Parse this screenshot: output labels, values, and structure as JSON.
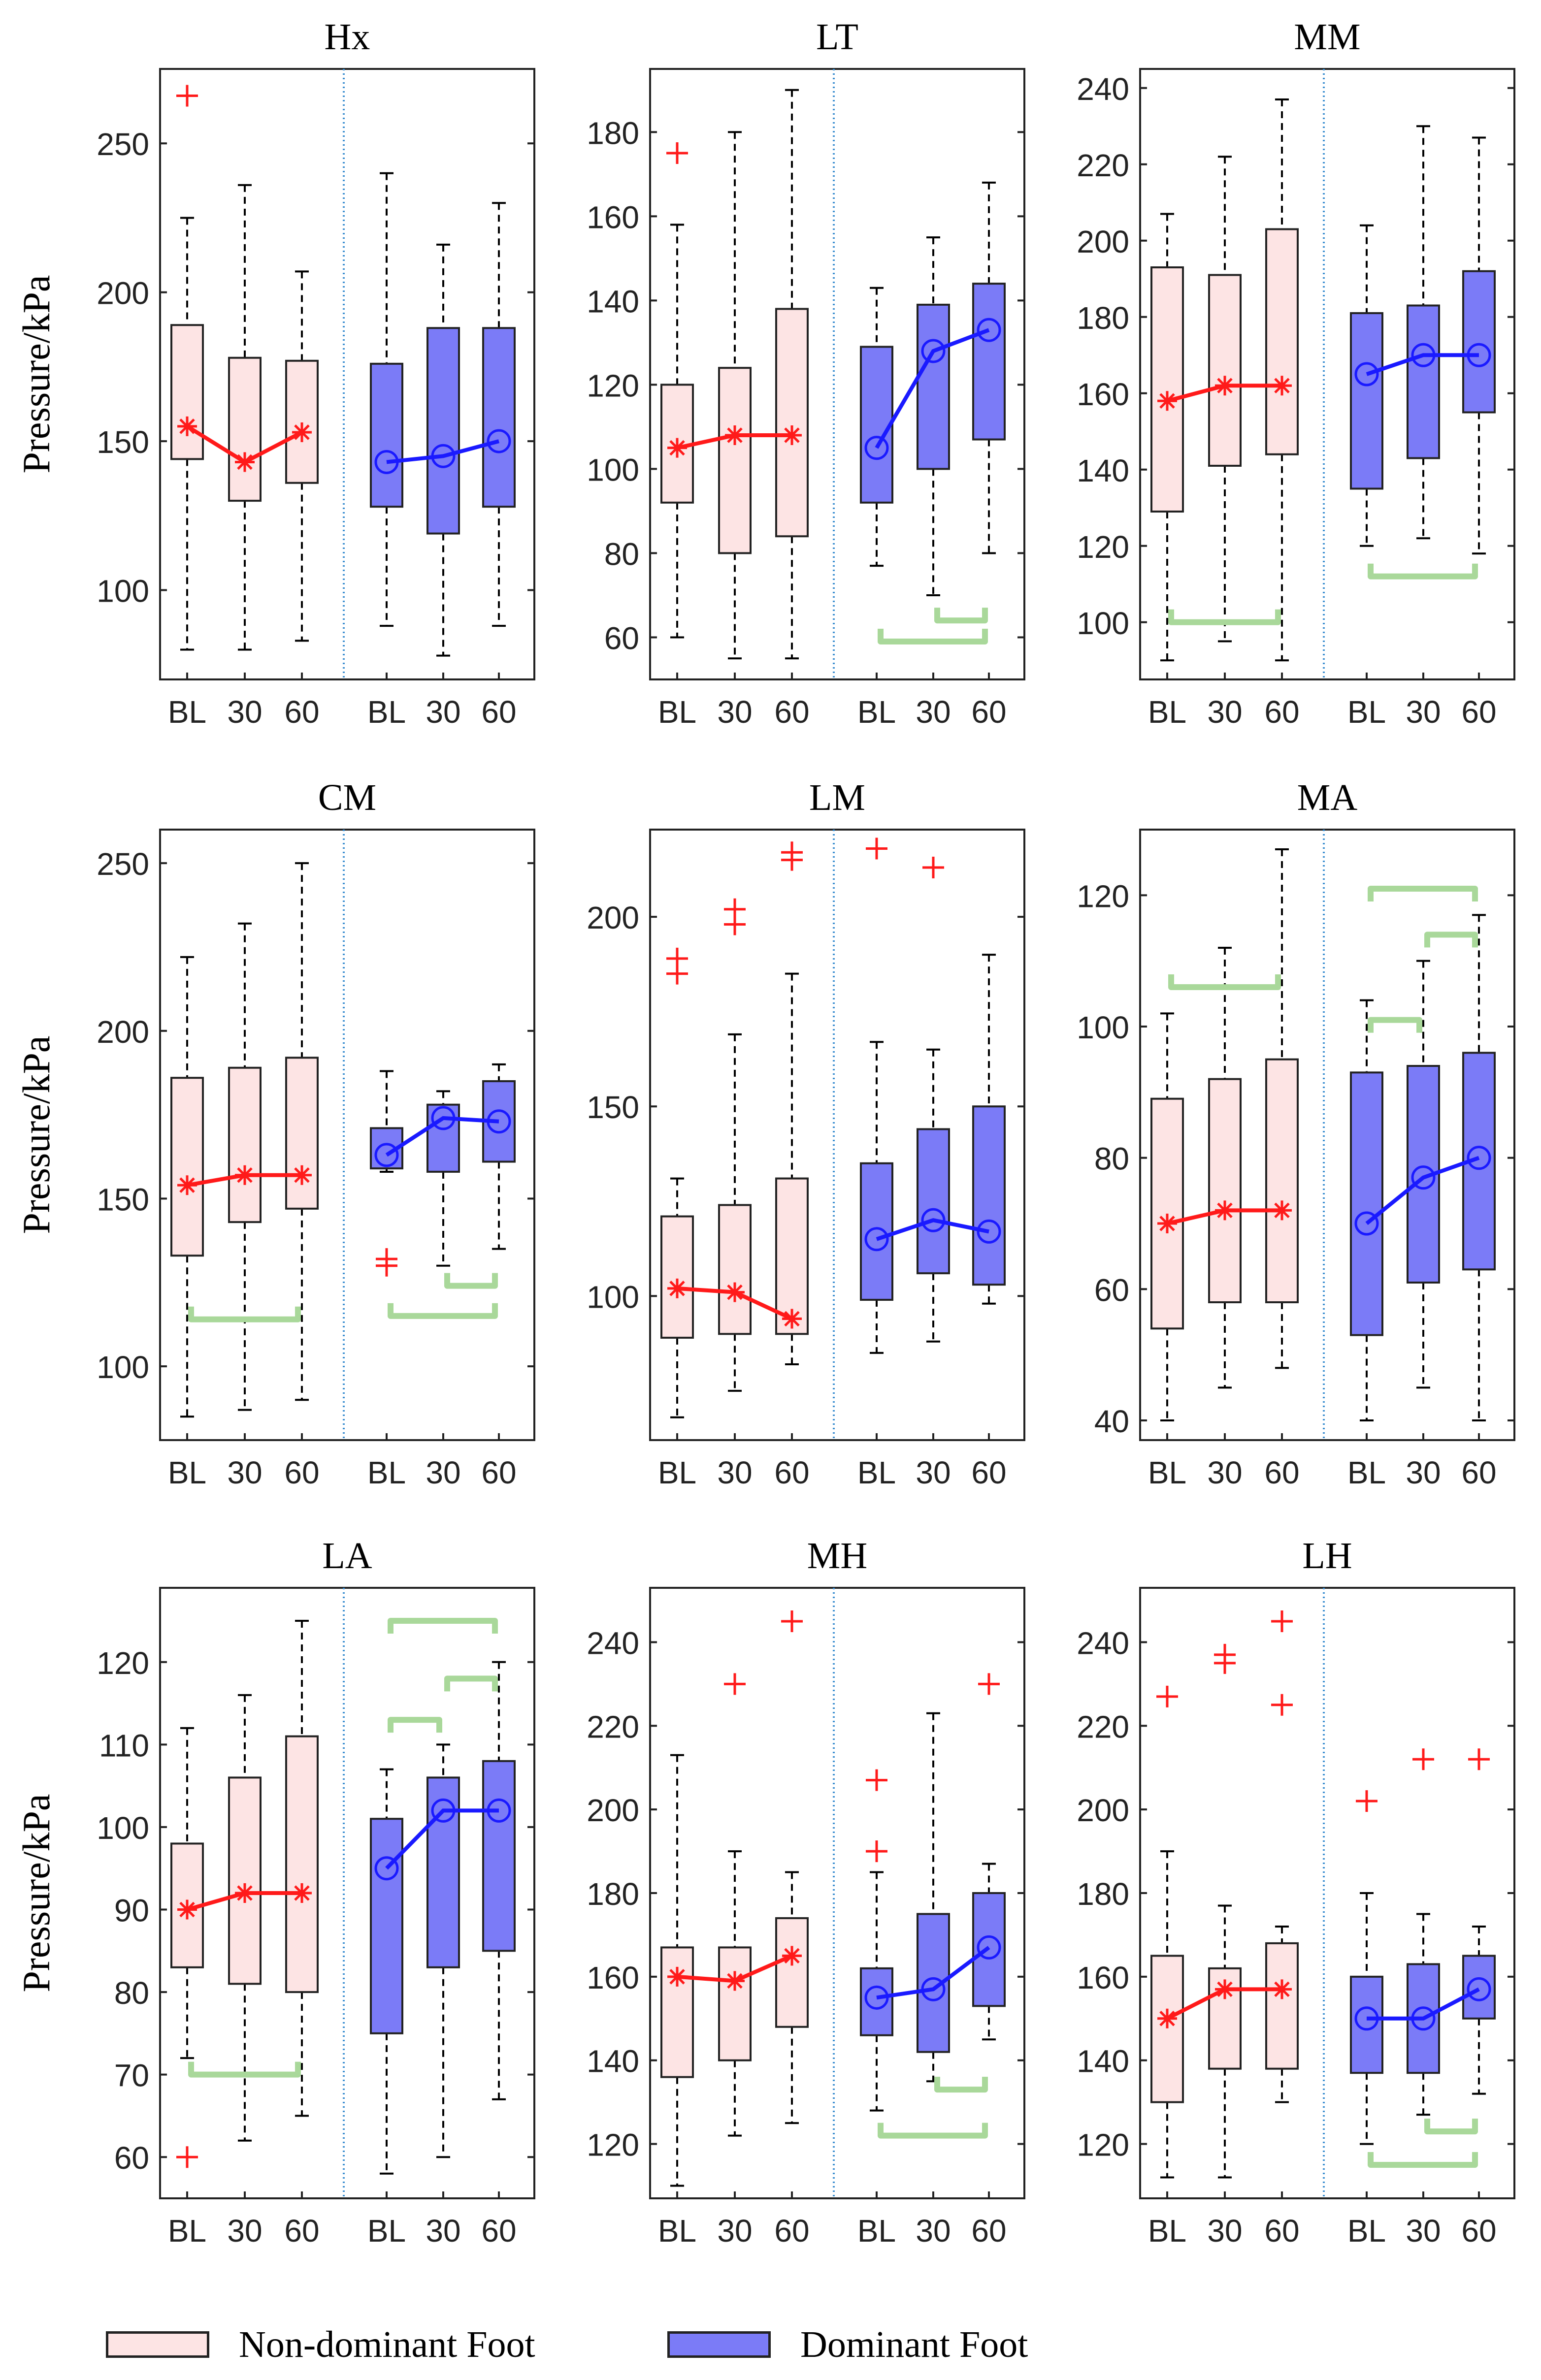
{
  "figure": {
    "ylabel": "Pressure/kPa",
    "x_categories": [
      "BL",
      "30",
      "60"
    ],
    "groups": [
      "Non-dominant Foot",
      "Dominant Foot"
    ],
    "colors": {
      "nondominant_fill": "#fde4e4",
      "dominant_fill": "#7b7bf7",
      "nondominant_line": "#ff1a1a",
      "dominant_line": "#1a1aff",
      "outlier": "#ff1a1a",
      "bracket": "#a9d89a",
      "separator": "#3b8ed0",
      "whisker": "#000000"
    },
    "legend": {
      "nondominant": "Non-dominant Foot",
      "dominant": "Dominant Foot"
    }
  },
  "chart_data": [
    {
      "type": "box",
      "title": "Hx",
      "ylabel": "Pressure/kPa",
      "ylim": [
        70,
        275
      ],
      "yticks": [
        100,
        150,
        200,
        250
      ],
      "show_ylabel": true,
      "nondominant": {
        "boxes": [
          {
            "category": "BL",
            "low": 80,
            "q1": 144,
            "median": 155,
            "q3": 189,
            "high": 225
          },
          {
            "category": "30",
            "low": 80,
            "q1": 130,
            "median": 143,
            "q3": 178,
            "high": 236
          },
          {
            "category": "60",
            "low": 83,
            "q1": 136,
            "median": 153,
            "q3": 177,
            "high": 207
          }
        ],
        "outliers": [
          {
            "category": "BL",
            "value": 266
          }
        ],
        "marker": "asterisk"
      },
      "dominant": {
        "boxes": [
          {
            "category": "BL",
            "low": 88,
            "q1": 128,
            "median": 143,
            "q3": 176,
            "high": 240
          },
          {
            "category": "30",
            "low": 78,
            "q1": 119,
            "median": 145,
            "q3": 188,
            "high": 216
          },
          {
            "category": "60",
            "low": 88,
            "q1": 128,
            "median": 150,
            "q3": 188,
            "high": 230
          }
        ],
        "outliers": [],
        "marker": "circle"
      },
      "brackets": []
    },
    {
      "type": "box",
      "title": "LT",
      "ylabel": "Pressure/kPa",
      "ylim": [
        50,
        195
      ],
      "yticks": [
        60,
        80,
        100,
        120,
        140,
        160,
        180
      ],
      "show_ylabel": false,
      "nondominant": {
        "boxes": [
          {
            "category": "BL",
            "low": 60,
            "q1": 92,
            "median": 105,
            "q3": 120,
            "high": 158
          },
          {
            "category": "30",
            "low": 55,
            "q1": 80,
            "median": 108,
            "q3": 124,
            "high": 180
          },
          {
            "category": "60",
            "low": 55,
            "q1": 84,
            "median": 108,
            "q3": 138,
            "high": 190
          }
        ],
        "outliers": [
          {
            "category": "BL",
            "value": 175
          }
        ],
        "marker": "asterisk"
      },
      "dominant": {
        "boxes": [
          {
            "category": "BL",
            "low": 77,
            "q1": 92,
            "median": 105,
            "q3": 129,
            "high": 143
          },
          {
            "category": "30",
            "low": 70,
            "q1": 100,
            "median": 128,
            "q3": 139,
            "high": 155
          },
          {
            "category": "60",
            "low": 80,
            "q1": 107,
            "median": 133,
            "q3": 144,
            "high": 168
          }
        ],
        "outliers": [],
        "marker": "circle"
      },
      "brackets": [
        {
          "group": "dominant",
          "from": "30",
          "to": "60",
          "level": 64
        },
        {
          "group": "dominant",
          "from": "BL",
          "to": "60",
          "level": 59
        }
      ]
    },
    {
      "type": "box",
      "title": "MM",
      "ylabel": "Pressure/kPa",
      "ylim": [
        85,
        245
      ],
      "yticks": [
        100,
        120,
        140,
        160,
        180,
        200,
        220,
        240
      ],
      "show_ylabel": false,
      "nondominant": {
        "boxes": [
          {
            "category": "BL",
            "low": 90,
            "q1": 129,
            "median": 158,
            "q3": 193,
            "high": 207
          },
          {
            "category": "30",
            "low": 95,
            "q1": 141,
            "median": 162,
            "q3": 191,
            "high": 222
          },
          {
            "category": "60",
            "low": 90,
            "q1": 144,
            "median": 162,
            "q3": 203,
            "high": 237
          }
        ],
        "outliers": [],
        "marker": "asterisk"
      },
      "dominant": {
        "boxes": [
          {
            "category": "BL",
            "low": 120,
            "q1": 135,
            "median": 165,
            "q3": 181,
            "high": 204
          },
          {
            "category": "30",
            "low": 122,
            "q1": 143,
            "median": 170,
            "q3": 183,
            "high": 230
          },
          {
            "category": "60",
            "low": 118,
            "q1": 155,
            "median": 170,
            "q3": 192,
            "high": 227
          }
        ],
        "outliers": [],
        "marker": "circle"
      },
      "brackets": [
        {
          "group": "nondominant",
          "from": "BL",
          "to": "60",
          "level": 100
        },
        {
          "group": "dominant",
          "from": "BL",
          "to": "60",
          "level": 112
        }
      ]
    },
    {
      "type": "box",
      "title": "CM",
      "ylabel": "Pressure/kPa",
      "ylim": [
        78,
        260
      ],
      "yticks": [
        100,
        150,
        200,
        250
      ],
      "show_ylabel": true,
      "nondominant": {
        "boxes": [
          {
            "category": "BL",
            "low": 85,
            "q1": 133,
            "median": 154,
            "q3": 186,
            "high": 222
          },
          {
            "category": "30",
            "low": 87,
            "q1": 143,
            "median": 157,
            "q3": 189,
            "high": 232
          },
          {
            "category": "60",
            "low": 90,
            "q1": 147,
            "median": 157,
            "q3": 192,
            "high": 250
          }
        ],
        "outliers": [],
        "marker": "asterisk"
      },
      "dominant": {
        "boxes": [
          {
            "category": "BL",
            "low": 158,
            "q1": 159,
            "median": 163,
            "q3": 171,
            "high": 188
          },
          {
            "category": "30",
            "low": 130,
            "q1": 158,
            "median": 174,
            "q3": 178,
            "high": 182
          },
          {
            "category": "60",
            "low": 135,
            "q1": 161,
            "median": 173,
            "q3": 185,
            "high": 190
          }
        ],
        "outliers": [
          {
            "category": "BL",
            "value": 130
          },
          {
            "category": "BL",
            "value": 132
          }
        ],
        "marker": "circle"
      },
      "brackets": [
        {
          "group": "nondominant",
          "from": "BL",
          "to": "60",
          "level": 114
        },
        {
          "group": "dominant",
          "from": "30",
          "to": "60",
          "level": 124
        },
        {
          "group": "dominant",
          "from": "BL",
          "to": "60",
          "level": 115
        }
      ]
    },
    {
      "type": "box",
      "title": "LM",
      "ylabel": "Pressure/kPa",
      "ylim": [
        62,
        223
      ],
      "yticks": [
        100,
        150,
        200
      ],
      "show_ylabel": false,
      "nondominant": {
        "boxes": [
          {
            "category": "BL",
            "low": 68,
            "q1": 89,
            "median": 102,
            "q3": 121,
            "high": 131
          },
          {
            "category": "30",
            "low": 75,
            "q1": 90,
            "median": 101,
            "q3": 124,
            "high": 169
          },
          {
            "category": "60",
            "low": 82,
            "q1": 90,
            "median": 94,
            "q3": 131,
            "high": 185
          }
        ],
        "outliers": [
          {
            "category": "BL",
            "value": 185
          },
          {
            "category": "BL",
            "value": 189
          },
          {
            "category": "30",
            "value": 198
          },
          {
            "category": "30",
            "value": 202
          },
          {
            "category": "60",
            "value": 215
          },
          {
            "category": "60",
            "value": 217
          }
        ],
        "marker": "asterisk"
      },
      "dominant": {
        "boxes": [
          {
            "category": "BL",
            "low": 85,
            "q1": 99,
            "median": 115,
            "q3": 135,
            "high": 167
          },
          {
            "category": "30",
            "low": 88,
            "q1": 106,
            "median": 120,
            "q3": 144,
            "high": 165
          },
          {
            "category": "60",
            "low": 98,
            "q1": 103,
            "median": 117,
            "q3": 150,
            "high": 190
          }
        ],
        "outliers": [
          {
            "category": "BL",
            "value": 218
          },
          {
            "category": "30",
            "value": 213
          }
        ],
        "marker": "circle"
      },
      "brackets": []
    },
    {
      "type": "box",
      "title": "MA",
      "ylabel": "Pressure/kPa",
      "ylim": [
        37,
        130
      ],
      "yticks": [
        40,
        60,
        80,
        100,
        120
      ],
      "show_ylabel": false,
      "nondominant": {
        "boxes": [
          {
            "category": "BL",
            "low": 40,
            "q1": 54,
            "median": 70,
            "q3": 89,
            "high": 102
          },
          {
            "category": "30",
            "low": 45,
            "q1": 58,
            "median": 72,
            "q3": 92,
            "high": 112
          },
          {
            "category": "60",
            "low": 48,
            "q1": 58,
            "median": 72,
            "q3": 95,
            "high": 127
          }
        ],
        "outliers": [],
        "marker": "asterisk"
      },
      "dominant": {
        "boxes": [
          {
            "category": "BL",
            "low": 40,
            "q1": 53,
            "median": 70,
            "q3": 93,
            "high": 104
          },
          {
            "category": "30",
            "low": 45,
            "q1": 61,
            "median": 77,
            "q3": 94,
            "high": 110
          },
          {
            "category": "60",
            "low": 40,
            "q1": 63,
            "median": 80,
            "q3": 96,
            "high": 117
          }
        ],
        "outliers": [],
        "marker": "circle"
      },
      "brackets": [
        {
          "group": "nondominant",
          "from": "BL",
          "to": "60",
          "level": 106
        },
        {
          "group": "dominant",
          "from": "BL",
          "to": "30",
          "level": 101
        },
        {
          "group": "dominant",
          "from": "30",
          "to": "60",
          "level": 114
        },
        {
          "group": "dominant",
          "from": "BL",
          "to": "60",
          "level": 121
        }
      ]
    },
    {
      "type": "box",
      "title": "LA",
      "ylabel": "Pressure/kPa",
      "ylim": [
        55,
        129
      ],
      "yticks": [
        60,
        70,
        80,
        90,
        100,
        110,
        120
      ],
      "show_ylabel": true,
      "nondominant": {
        "boxes": [
          {
            "category": "BL",
            "low": 72,
            "q1": 83,
            "median": 90,
            "q3": 98,
            "high": 112
          },
          {
            "category": "30",
            "low": 62,
            "q1": 81,
            "median": 92,
            "q3": 106,
            "high": 116
          },
          {
            "category": "60",
            "low": 65,
            "q1": 80,
            "median": 92,
            "q3": 111,
            "high": 125
          }
        ],
        "outliers": [
          {
            "category": "BL",
            "value": 60
          }
        ],
        "marker": "asterisk"
      },
      "dominant": {
        "boxes": [
          {
            "category": "BL",
            "low": 58,
            "q1": 75,
            "median": 95,
            "q3": 101,
            "high": 107
          },
          {
            "category": "30",
            "low": 60,
            "q1": 83,
            "median": 102,
            "q3": 106,
            "high": 110
          },
          {
            "category": "60",
            "low": 67,
            "q1": 85,
            "median": 102,
            "q3": 108,
            "high": 120
          }
        ],
        "outliers": [],
        "marker": "circle"
      },
      "brackets": [
        {
          "group": "nondominant",
          "from": "BL",
          "to": "60",
          "level": 70
        },
        {
          "group": "dominant",
          "from": "BL",
          "to": "30",
          "level": 113
        },
        {
          "group": "dominant",
          "from": "30",
          "to": "60",
          "level": 118
        },
        {
          "group": "dominant",
          "from": "BL",
          "to": "60",
          "level": 125
        }
      ]
    },
    {
      "type": "box",
      "title": "MH",
      "ylabel": "Pressure/kPa",
      "ylim": [
        107,
        253
      ],
      "yticks": [
        120,
        140,
        160,
        180,
        200,
        220,
        240
      ],
      "show_ylabel": false,
      "nondominant": {
        "boxes": [
          {
            "category": "BL",
            "low": 110,
            "q1": 136,
            "median": 160,
            "q3": 167,
            "high": 213
          },
          {
            "category": "30",
            "low": 122,
            "q1": 140,
            "median": 159,
            "q3": 167,
            "high": 190
          },
          {
            "category": "60",
            "low": 125,
            "q1": 148,
            "median": 165,
            "q3": 174,
            "high": 185
          }
        ],
        "outliers": [
          {
            "category": "30",
            "value": 230
          },
          {
            "category": "60",
            "value": 245
          }
        ],
        "marker": "asterisk"
      },
      "dominant": {
        "boxes": [
          {
            "category": "BL",
            "low": 128,
            "q1": 146,
            "median": 155,
            "q3": 162,
            "high": 185
          },
          {
            "category": "30",
            "low": 135,
            "q1": 142,
            "median": 157,
            "q3": 175,
            "high": 223
          },
          {
            "category": "60",
            "low": 145,
            "q1": 153,
            "median": 167,
            "q3": 180,
            "high": 187
          }
        ],
        "outliers": [
          {
            "category": "BL",
            "value": 190
          },
          {
            "category": "BL",
            "value": 207
          },
          {
            "category": "60",
            "value": 230
          }
        ],
        "marker": "circle"
      },
      "brackets": [
        {
          "group": "dominant",
          "from": "30",
          "to": "60",
          "level": 133
        },
        {
          "group": "dominant",
          "from": "BL",
          "to": "60",
          "level": 122
        }
      ]
    },
    {
      "type": "box",
      "title": "LH",
      "ylabel": "Pressure/kPa",
      "ylim": [
        107,
        253
      ],
      "yticks": [
        120,
        140,
        160,
        180,
        200,
        220,
        240
      ],
      "show_ylabel": false,
      "nondominant": {
        "boxes": [
          {
            "category": "BL",
            "low": 112,
            "q1": 130,
            "median": 150,
            "q3": 165,
            "high": 190
          },
          {
            "category": "30",
            "low": 112,
            "q1": 138,
            "median": 157,
            "q3": 162,
            "high": 177
          },
          {
            "category": "60",
            "low": 130,
            "q1": 138,
            "median": 157,
            "q3": 168,
            "high": 172
          }
        ],
        "outliers": [
          {
            "category": "BL",
            "value": 227
          },
          {
            "category": "30",
            "value": 235
          },
          {
            "category": "30",
            "value": 237
          },
          {
            "category": "60",
            "value": 225
          },
          {
            "category": "60",
            "value": 245
          }
        ],
        "marker": "asterisk"
      },
      "dominant": {
        "boxes": [
          {
            "category": "BL",
            "low": 120,
            "q1": 137,
            "median": 150,
            "q3": 160,
            "high": 180
          },
          {
            "category": "30",
            "low": 127,
            "q1": 137,
            "median": 150,
            "q3": 163,
            "high": 175
          },
          {
            "category": "60",
            "low": 132,
            "q1": 150,
            "median": 157,
            "q3": 165,
            "high": 172
          }
        ],
        "outliers": [
          {
            "category": "BL",
            "value": 202
          },
          {
            "category": "30",
            "value": 212
          },
          {
            "category": "60",
            "value": 212
          }
        ],
        "marker": "circle"
      },
      "brackets": [
        {
          "group": "dominant",
          "from": "30",
          "to": "60",
          "level": 123
        },
        {
          "group": "dominant",
          "from": "BL",
          "to": "60",
          "level": 115
        }
      ]
    }
  ]
}
